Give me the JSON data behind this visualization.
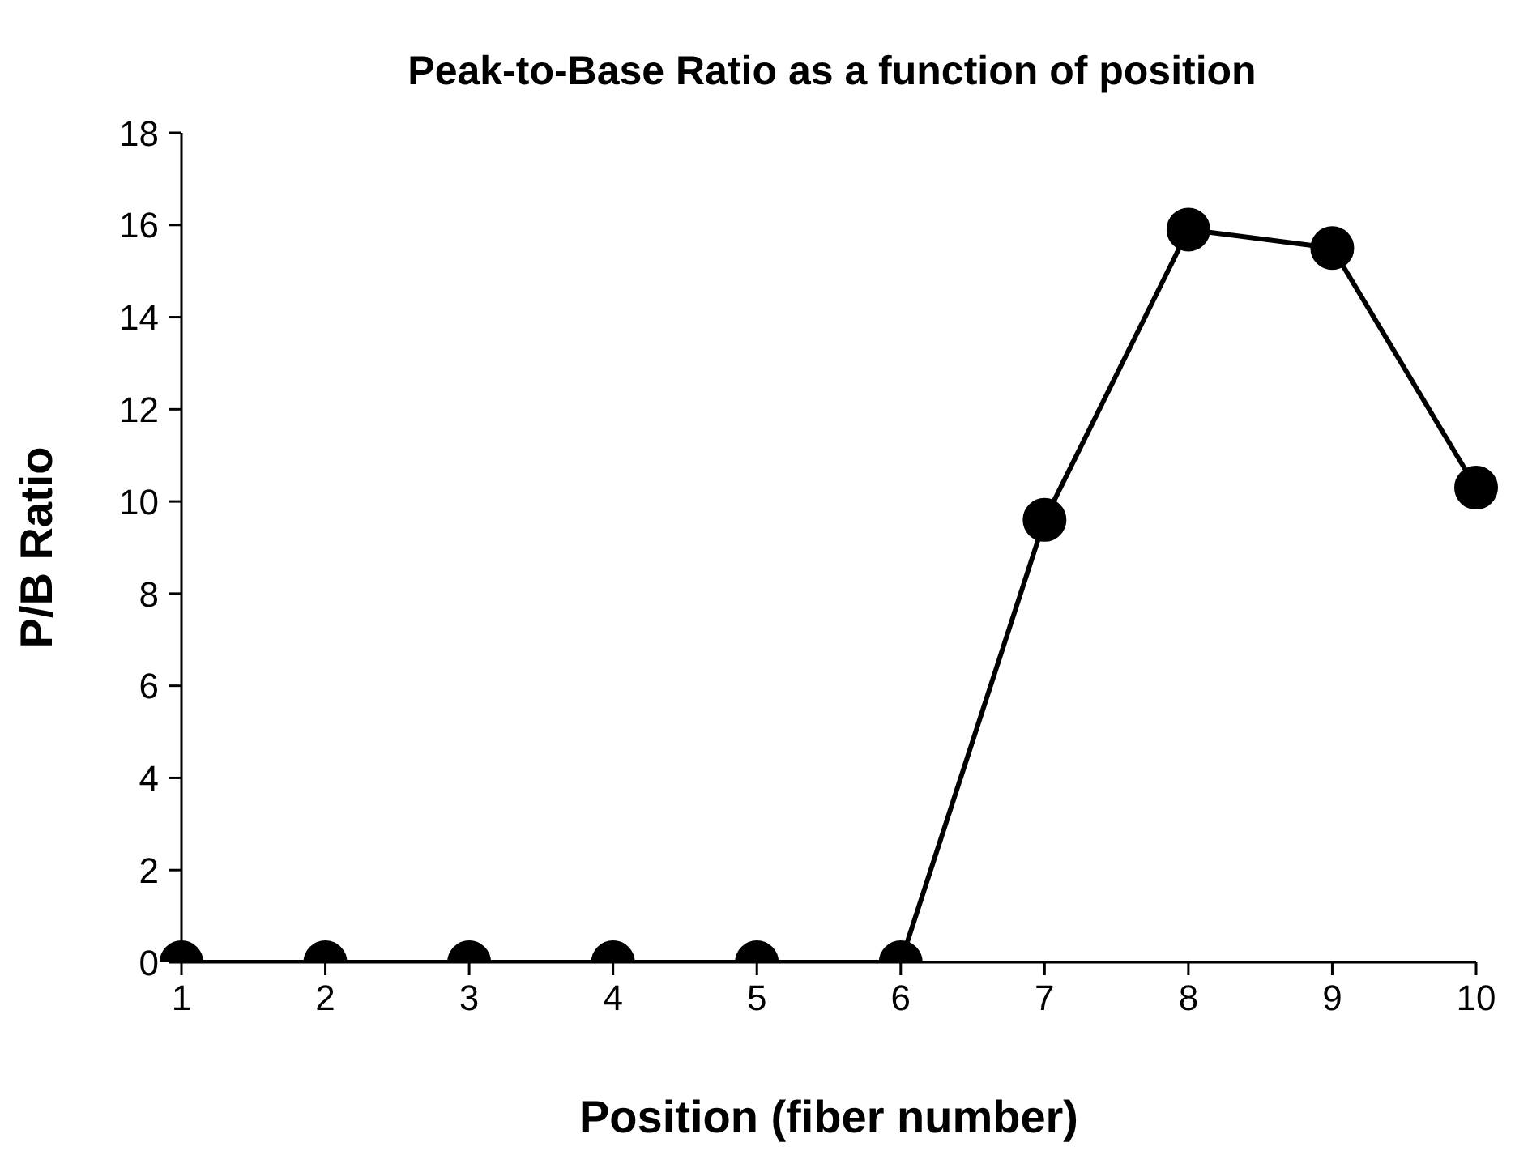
{
  "chart_data": {
    "type": "line",
    "title": "Peak-to-Base Ratio as a function of position",
    "xlabel": "Position (fiber number)",
    "ylabel": "P/B Ratio",
    "x": [
      1,
      2,
      3,
      4,
      5,
      6,
      7,
      8,
      9,
      10
    ],
    "series": [
      {
        "color": "#000000",
        "values": [
          0,
          0,
          0,
          0,
          0,
          0,
          9.6,
          15.9,
          15.5,
          10.3
        ]
      }
    ],
    "xlim": [
      1,
      10
    ],
    "xticks": [
      1,
      2,
      3,
      4,
      5,
      6,
      7,
      8,
      9,
      10
    ],
    "ylim": [
      0,
      18
    ],
    "yticks": [
      0,
      2,
      4,
      6,
      8,
      10,
      12,
      14,
      16,
      18
    ],
    "grid": false,
    "legend": false,
    "marker": "circle",
    "line_style": "solid"
  }
}
